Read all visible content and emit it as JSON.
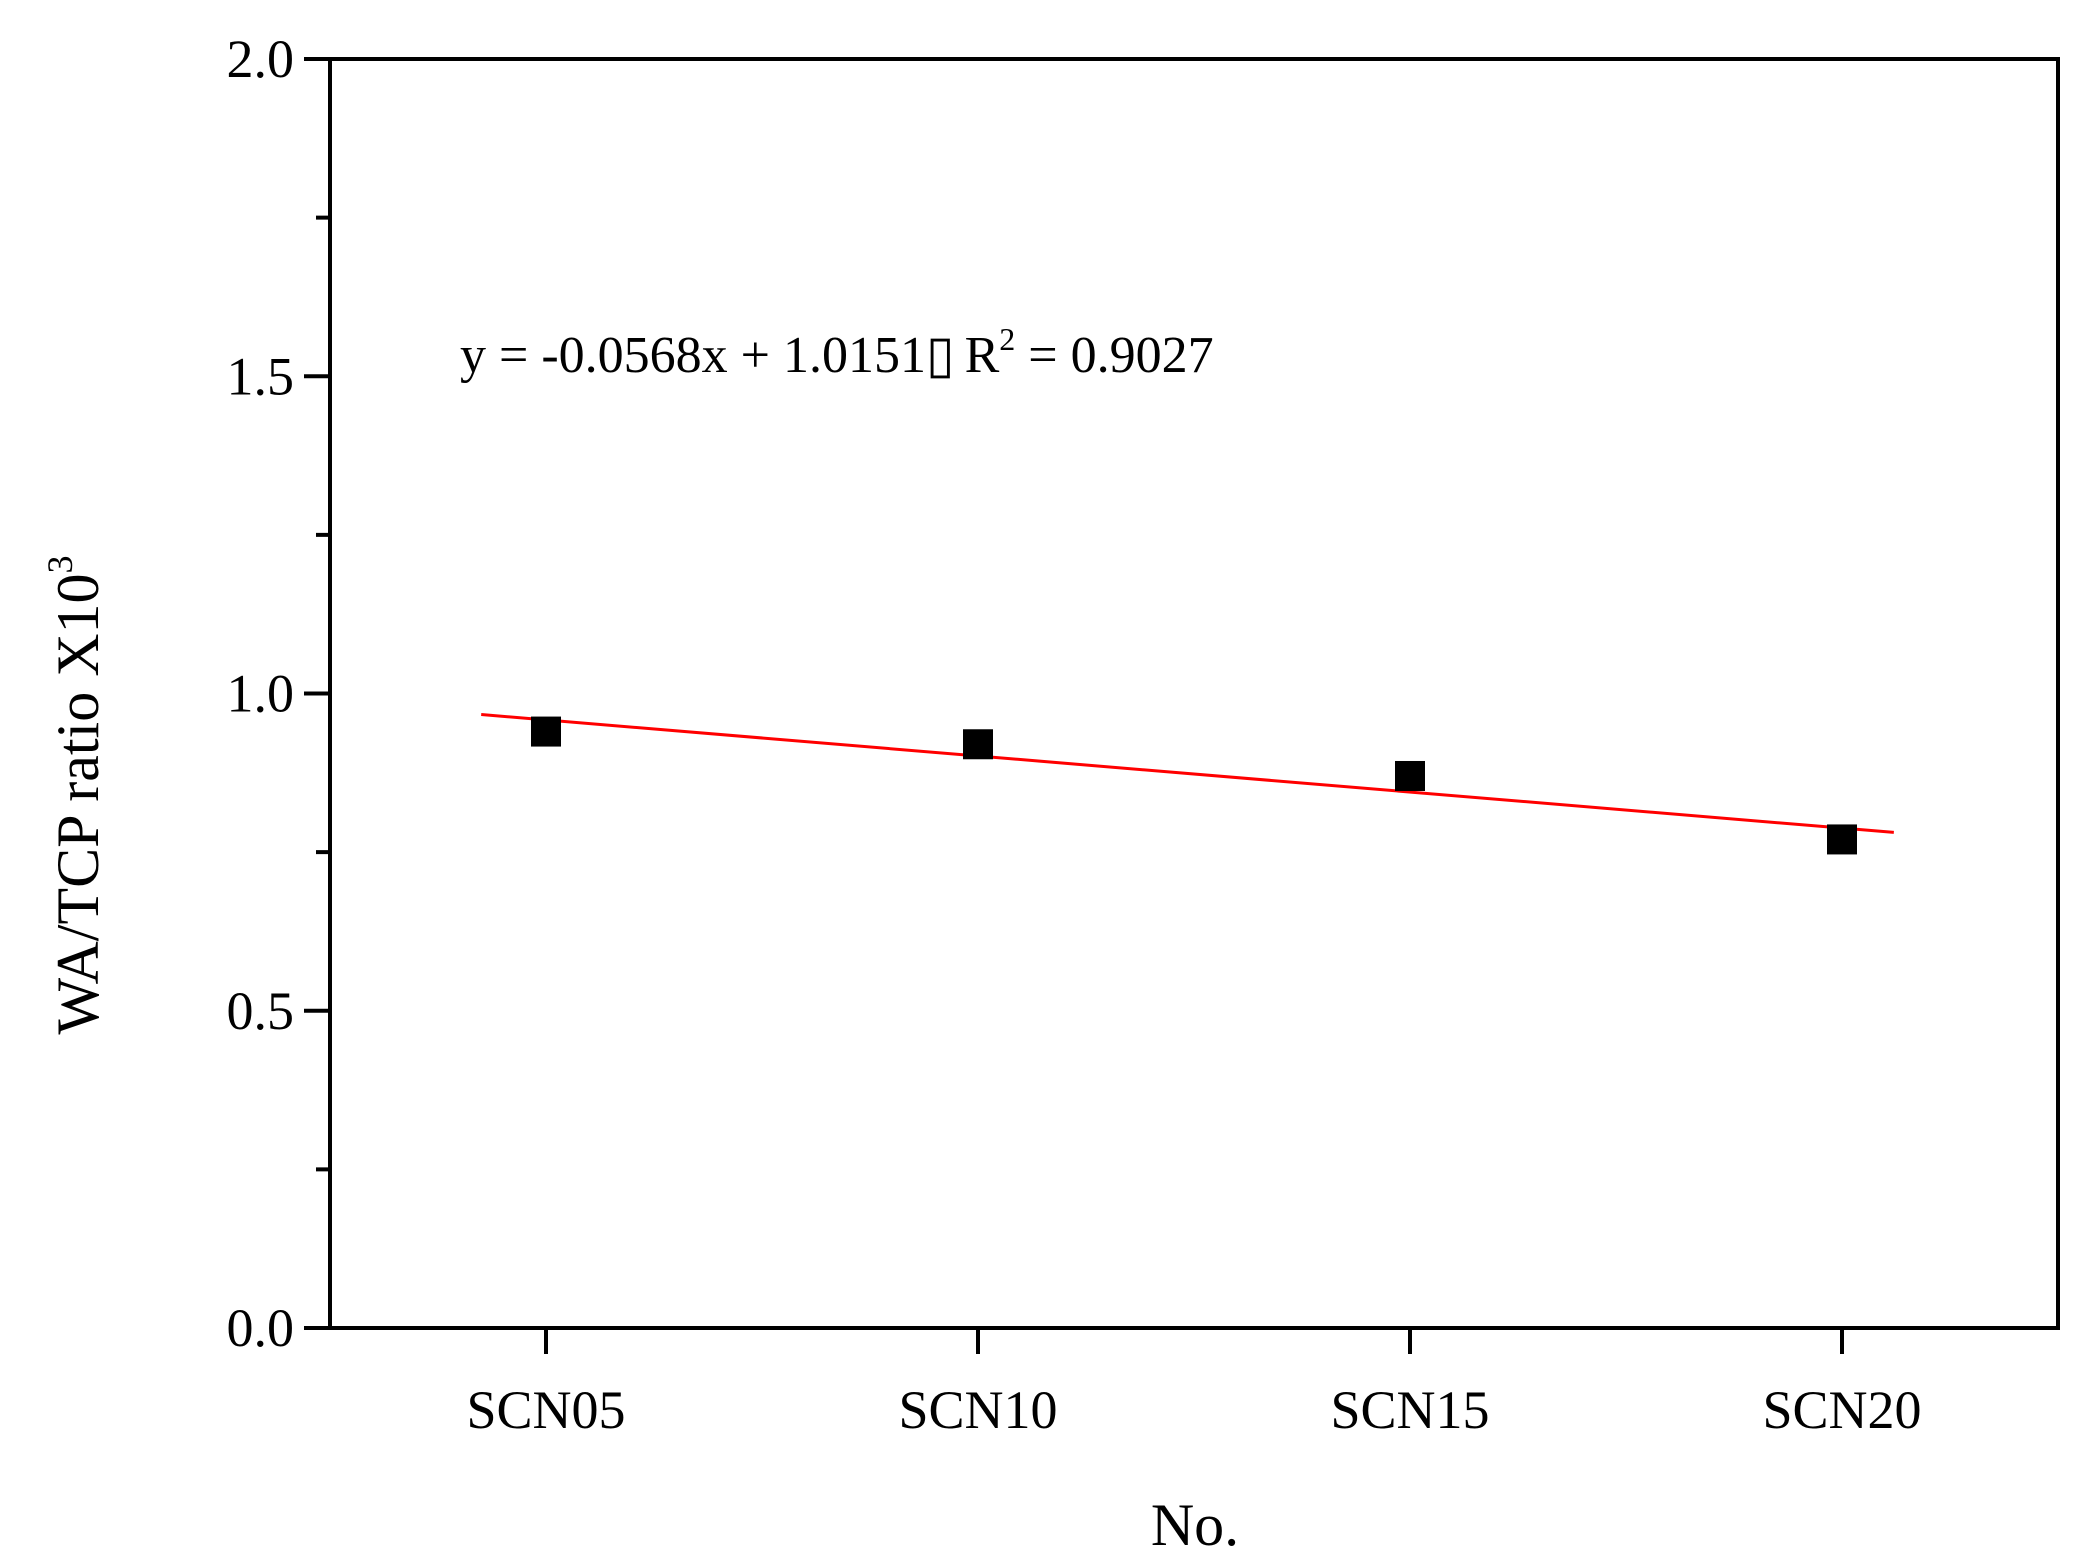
{
  "chart_data": {
    "type": "scatter",
    "categories": [
      "SCN05",
      "SCN10",
      "SCN15",
      "SCN20"
    ],
    "x": [
      1,
      2,
      3,
      4
    ],
    "xlim": [
      0.5,
      4.5
    ],
    "ylim": [
      0.0,
      2.0
    ],
    "yticks": [
      "0.0",
      "0.5",
      "1.0",
      "1.5",
      "2.0"
    ],
    "xlabel": "No.",
    "ylabel": "WA/TCP ratio X10",
    "ylabel_sup": "3",
    "series": [
      {
        "values": [
          0.94,
          0.92,
          0.87,
          0.77
        ]
      }
    ],
    "fit": {
      "slope": -0.0568,
      "intercept": 1.0151,
      "x_range": [
        0.85,
        4.12
      ],
      "color": "#ff0000",
      "equation_text": "y = -0.0568x + 1.0151",
      "separator": "▯",
      "r2_prefix": "R",
      "r2_sup": "2",
      "r2_value_text": " = 0.9027"
    },
    "grid": false,
    "legend": "none",
    "marker_color": "#000000"
  }
}
